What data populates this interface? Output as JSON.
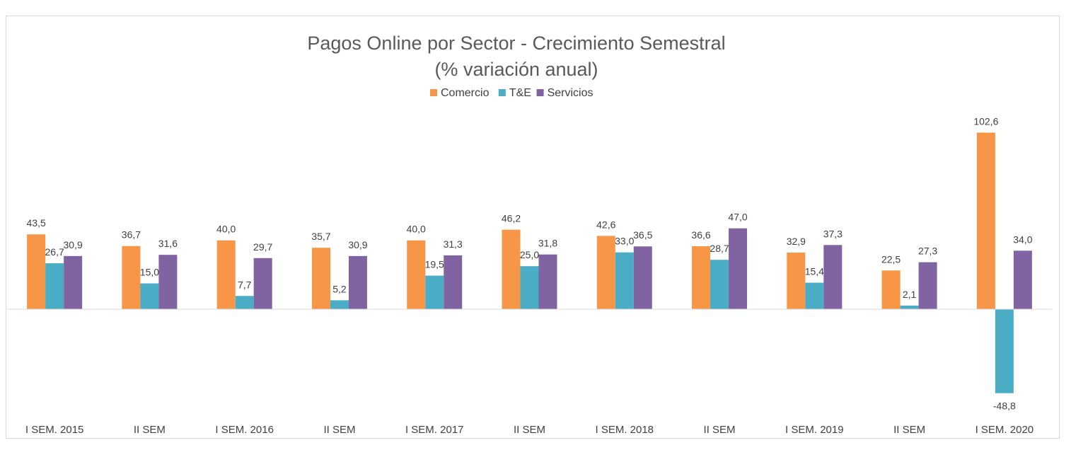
{
  "chart_data": {
    "type": "bar",
    "title": "Pagos Online por Sector - Crecimiento Semestral",
    "subtitle": "(% variación anual)",
    "categories": [
      "I SEM. 2015",
      "II SEM",
      "I SEM. 2016",
      "II SEM",
      "I SEM. 2017",
      "II SEM",
      "I SEM. 2018",
      "II SEM",
      "I SEM. 2019",
      "II SEM",
      "I SEM. 2020"
    ],
    "series": [
      {
        "name": "Comercio",
        "color": "#f79646",
        "values": [
          43.5,
          36.7,
          40.0,
          35.7,
          40.0,
          46.2,
          42.6,
          36.6,
          32.9,
          22.5,
          102.6
        ]
      },
      {
        "name": "T&E",
        "color": "#4bacc6",
        "values": [
          26.7,
          15.0,
          7.7,
          5.2,
          19.5,
          25.0,
          33.0,
          28.7,
          15.4,
          2.1,
          -48.8
        ]
      },
      {
        "name": "Servicios",
        "color": "#8064a2",
        "values": [
          30.9,
          31.6,
          29.7,
          30.9,
          31.3,
          31.8,
          36.5,
          47.0,
          37.3,
          27.3,
          34.0
        ]
      }
    ],
    "legend_position": "top",
    "grid": false,
    "xlabel": "",
    "ylabel": "",
    "decimal_separator": ","
  }
}
